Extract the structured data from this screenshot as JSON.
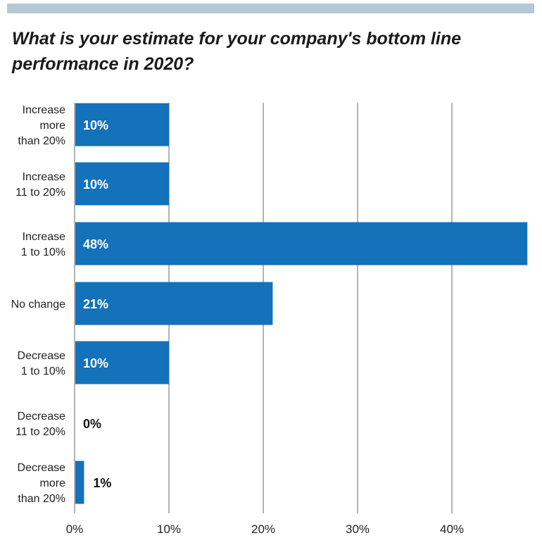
{
  "chart_data": {
    "type": "bar",
    "orientation": "horizontal",
    "title": "What is your estimate for your company's bottom line performance in 2020?",
    "categories": [
      [
        "Increase",
        "more",
        "than 20%"
      ],
      [
        "Increase",
        "11 to 20%"
      ],
      [
        "Increase",
        "1 to 10%"
      ],
      [
        "No change"
      ],
      [
        "Decrease",
        "1 to 10%"
      ],
      [
        "Decrease",
        "11 to 20%"
      ],
      [
        "Decrease",
        "more",
        "than 20%"
      ]
    ],
    "values": [
      10,
      10,
      48,
      21,
      10,
      0,
      1
    ],
    "value_labels": [
      "10%",
      "10%",
      "48%",
      "21%",
      "10%",
      "0%",
      "1%"
    ],
    "xlim": [
      0,
      48
    ],
    "x_ticks": [
      0,
      10,
      20,
      30,
      40
    ],
    "x_tick_labels": [
      "0%",
      "10%",
      "20%",
      "30%",
      "40%"
    ],
    "grid": true,
    "bar_color": "#1372b9",
    "grid_color": "#b3b3b3",
    "label_inside_color": "#ffffff",
    "label_outside_color": "#111111"
  }
}
